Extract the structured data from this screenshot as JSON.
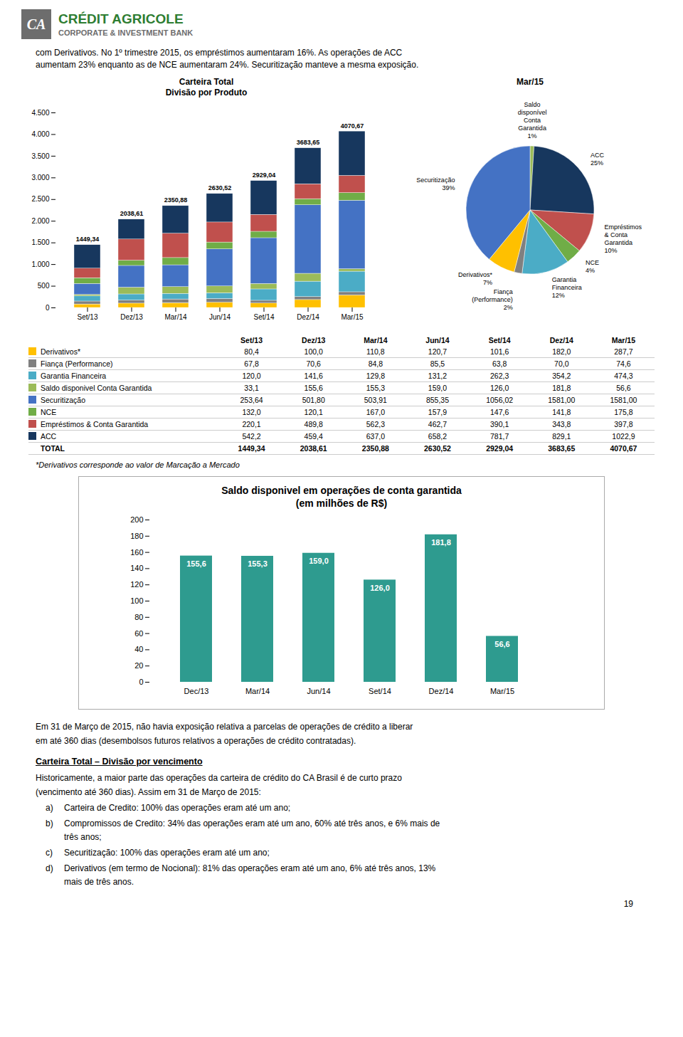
{
  "header": {
    "logo": "CA",
    "title": "CRÉDIT AGRICOLE",
    "subtitle": "CORPORATE & INVESTMENT BANK"
  },
  "intro_text": [
    "com Derivativos. No 1º trimestre 2015, os empréstimos aumentaram 16%. As operações de ACC",
    "aumentam 23% enquanto as de NCE aumentaram 24%. Securitização manteve a mesma exposição."
  ],
  "chart_data": [
    {
      "type": "bar",
      "stacked": true,
      "title": "Carteira Total",
      "subtitle": "Divisão por Produto",
      "categories": [
        "Set/13",
        "Dez/13",
        "Mar/14",
        "Jun/14",
        "Set/14",
        "Dez/14",
        "Mar/15"
      ],
      "series": [
        {
          "name": "Derivativos*",
          "color": "#FFC000",
          "values": [
            80.4,
            100.0,
            110.8,
            120.7,
            101.6,
            182.0,
            287.7
          ]
        },
        {
          "name": "Fiança (Performance)",
          "color": "#808080",
          "values": [
            67.8,
            70.6,
            84.8,
            85.5,
            63.8,
            70.0,
            74.6
          ]
        },
        {
          "name": "Garantia Financeira",
          "color": "#4BACC6",
          "values": [
            120.0,
            141.6,
            129.8,
            131.2,
            262.3,
            354.2,
            474.3
          ]
        },
        {
          "name": "Saldo disponivel Conta Garantida",
          "color": "#9BBB59",
          "values": [
            33.1,
            155.6,
            155.3,
            159.0,
            126.0,
            181.8,
            56.6
          ]
        },
        {
          "name": "Securitização",
          "color": "#4472C4",
          "values": [
            253.64,
            501.8,
            503.91,
            855.35,
            1056.02,
            1581.0,
            1581.0
          ]
        },
        {
          "name": "NCE",
          "color": "#70AD47",
          "values": [
            132.0,
            120.1,
            167.0,
            157.9,
            147.6,
            141.8,
            175.8
          ]
        },
        {
          "name": "Empréstimos & Conta Garantida",
          "color": "#C0504D",
          "values": [
            220.1,
            489.8,
            562.3,
            462.7,
            390.1,
            343.8,
            397.8
          ]
        },
        {
          "name": "ACC",
          "color": "#17375E",
          "values": [
            542.2,
            459.4,
            637.0,
            658.2,
            781.7,
            829.1,
            1022.9
          ]
        }
      ],
      "totals": [
        1449.34,
        2038.61,
        2350.88,
        2630.52,
        2929.04,
        3683.65,
        4070.67
      ],
      "total_labels": [
        "1449,34",
        "2038,61",
        "2350,88",
        "2630,52",
        "2929,04",
        "3683,65",
        "4070,67"
      ],
      "ylim": [
        0,
        4500
      ],
      "yticks": [
        0,
        500,
        {
          "value": 1000,
          "label": "1.000"
        },
        {
          "value": 1500,
          "label": "1.500"
        },
        {
          "value": 2000,
          "label": "2.000"
        },
        {
          "value": 2500,
          "label": "2.500"
        },
        {
          "value": 3000,
          "label": "3.000"
        },
        {
          "value": 3500,
          "label": "3.500"
        },
        {
          "value": 4000,
          "label": "4.000"
        },
        {
          "value": 4500,
          "label": "4.500"
        }
      ],
      "grid": false
    },
    {
      "type": "pie",
      "title": "Mar/15",
      "categories": [
        "Saldo\ndisponível\nConta\nGarantida",
        "ACC",
        "Empréstimos\n& Conta\nGarantida",
        "NCE",
        "Garantia\nFinanceira",
        "Fiança\n(Performance)",
        "Derivativos*",
        "Securitização"
      ],
      "values": [
        1,
        25,
        10,
        4,
        12,
        2,
        7,
        39
      ],
      "value_labels": [
        "1%",
        "25%",
        "10%",
        "4%",
        "12%",
        "2%",
        "7%",
        "39%"
      ],
      "colors": [
        "#9BBB59",
        "#17375E",
        "#C0504D",
        "#70AD47",
        "#4BACC6",
        "#808080",
        "#FFC000",
        "#4472C4"
      ],
      "data_labels": true
    },
    {
      "type": "bar",
      "title": "Saldo disponivel em operações de conta garantida",
      "subtitle": "(em milhões de R$)",
      "categories": [
        "Dec/13",
        "Mar/14",
        "Jun/14",
        "Set/14",
        "Dez/14",
        "Mar/15"
      ],
      "values": [
        155.6,
        155.3,
        159.0,
        126.0,
        181.8,
        56.6
      ],
      "value_labels": [
        "155,6",
        "155,3",
        "159,0",
        "126,0",
        "181,8",
        "56,6"
      ],
      "color": "#2E9B8F",
      "data_labels": true,
      "ylim": [
        0,
        200
      ],
      "yticks": [
        0,
        20,
        40,
        60,
        80,
        100,
        120,
        140,
        160,
        180,
        200
      ],
      "grid": false
    }
  ],
  "table": {
    "columns": [
      "Set/13",
      "Dez/13",
      "Mar/14",
      "Jun/14",
      "Set/14",
      "Dez/14",
      "Mar/15"
    ],
    "rows": [
      [
        "Derivativos*",
        "80,4",
        "100,0",
        "110,8",
        "120,7",
        "101,6",
        "182,0",
        "287,7"
      ],
      [
        "Fiança (Performance)",
        "67,8",
        "70,6",
        "84,8",
        "85,5",
        "63,8",
        "70,0",
        "74,6"
      ],
      [
        "Garantia Financeira",
        "120,0",
        "141,6",
        "129,8",
        "131,2",
        "262,3",
        "354,2",
        "474,3"
      ],
      [
        "Saldo disponivel Conta Garantida",
        "33,1",
        "155,6",
        "155,3",
        "159,0",
        "126,0",
        "181,8",
        "56,6"
      ],
      [
        "Securitização",
        "253,64",
        "501,80",
        "503,91",
        "855,35",
        "1056,02",
        "1581,00",
        "1581,00"
      ],
      [
        "NCE",
        "132,0",
        "120,1",
        "167,0",
        "157,9",
        "147,6",
        "141,8",
        "175,8"
      ],
      [
        "Empréstimos & Conta Garantida",
        "220,1",
        "489,8",
        "562,3",
        "462,7",
        "390,1",
        "343,8",
        "397,8"
      ],
      [
        "ACC",
        "542,2",
        "459,4",
        "637,0",
        "658,2",
        "781,7",
        "829,1",
        "1022,9"
      ],
      [
        "TOTAL",
        "1449,34",
        "2038,61",
        "2350,88",
        "2630,52",
        "2929,04",
        "3683,65",
        "4070,67"
      ]
    ],
    "row_colors": [
      "#FFC000",
      "#808080",
      "#4BACC6",
      "#9BBB59",
      "#4472C4",
      "#70AD47",
      "#C0504D",
      "#17375E",
      null
    ]
  },
  "footnote": "*Derivativos corresponde ao valor de Marcação a Mercado",
  "bottom_text": "Em 31 de Março de 2015, não havia exposição relativa a parcelas de operações de crédito a liberar\nem até 360 dias (desembolsos futuros relativos a operações de crédito contratadas).",
  "bottom_title": "Carteira Total – Divisão por vencimento",
  "bottom_para": "Historicamente, a maior parte das operações da carteira de crédito do CA Brasil é de curto prazo\n(vencimento até 360 dias). Assim em 31 de Março de 2015:",
  "bullet_items": [
    {
      "prefix": "a)",
      "text": "Carteira de Credito: 100% das operações eram até um ano;"
    },
    {
      "prefix": "b)",
      "text": "Compromissos de Credito: 34% das operações eram até um ano, 60% até três anos, e 6% mais de",
      "continuation": "três anos;"
    },
    {
      "prefix": "c)",
      "text": "Securitização: 100% das operações eram até um ano;"
    },
    {
      "prefix": "d)",
      "text": "Derivativos (em termo de Nocional): 81% das operações eram até um ano, 6% até três anos, 13%",
      "continuation": "mais de três anos."
    }
  ],
  "page_number": "19"
}
